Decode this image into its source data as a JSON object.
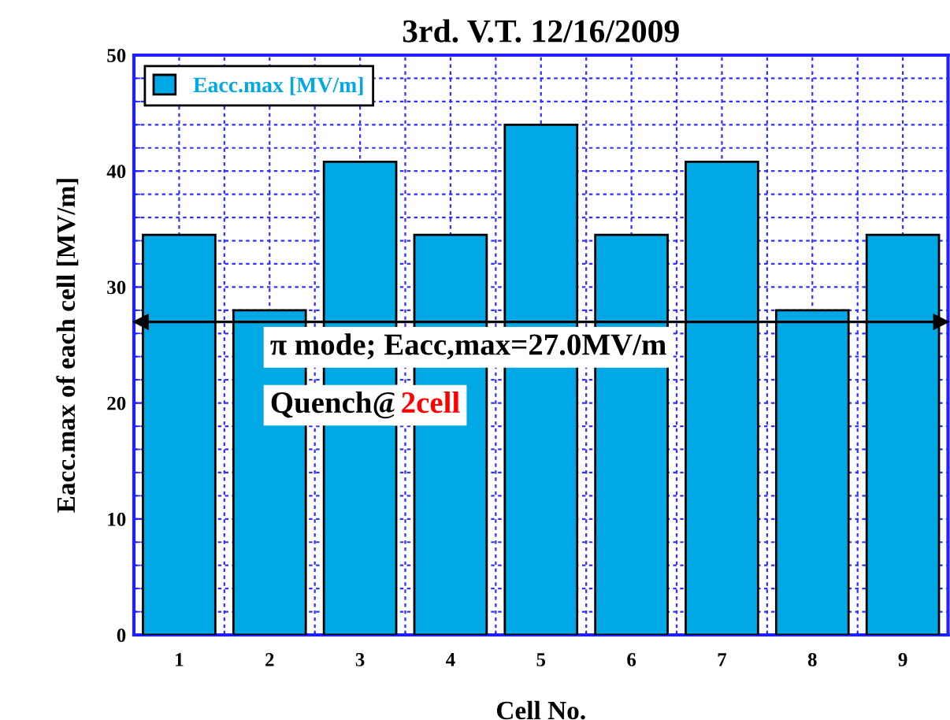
{
  "chart_data": {
    "type": "bar",
    "title": "3rd. V.T. 12/16/2009",
    "xlabel": "Cell No.",
    "ylabel": "Eacc.max of each cell [MV/m]",
    "categories": [
      "1",
      "2",
      "3",
      "4",
      "5",
      "6",
      "7",
      "8",
      "9"
    ],
    "series": [
      {
        "name": "Eacc.max [MV/m]",
        "color": "#00a8e6",
        "values": [
          34.5,
          28,
          40.8,
          34.5,
          44,
          34.5,
          40.8,
          28,
          34.5
        ]
      }
    ],
    "ylim": [
      0,
      50
    ],
    "yticks": [
      0,
      10,
      20,
      30,
      40,
      50
    ],
    "grid": true,
    "legend": "top left",
    "ref_lines": [
      {
        "axis": "y",
        "value": 27.0,
        "color": "#000000",
        "line_style": "solid"
      }
    ],
    "annotations": [
      "π mode; Eacc,max=27.0MV/m",
      "Quench@",
      "2cell"
    ]
  }
}
